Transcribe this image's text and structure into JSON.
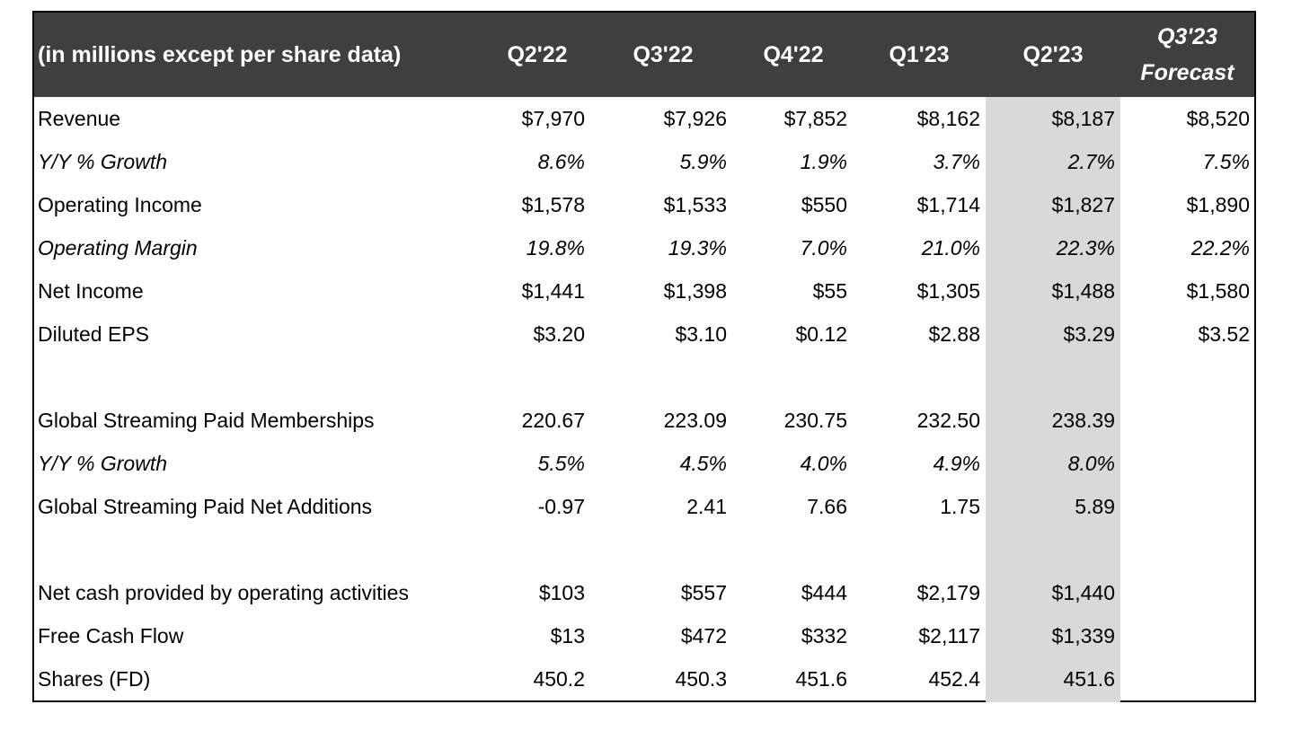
{
  "header": {
    "label": "(in millions except per share data)",
    "columns": [
      "Q2'22",
      "Q3'22",
      "Q4'22",
      "Q1'23",
      "Q2'23"
    ],
    "forecast_line1": "Q3'23",
    "forecast_line2": "Forecast"
  },
  "highlighted_column": "Q2'23",
  "rows": [
    {
      "label": "Revenue",
      "italic": false,
      "values": [
        "$7,970",
        "$7,926",
        "$7,852",
        "$8,162",
        "$8,187",
        "$8,520"
      ]
    },
    {
      "label": "Y/Y % Growth",
      "italic": true,
      "values": [
        "8.6%",
        "5.9%",
        "1.9%",
        "3.7%",
        "2.7%",
        "7.5%"
      ]
    },
    {
      "label": "Operating Income",
      "italic": false,
      "values": [
        "$1,578",
        "$1,533",
        "$550",
        "$1,714",
        "$1,827",
        "$1,890"
      ]
    },
    {
      "label": "Operating Margin",
      "italic": true,
      "values": [
        "19.8%",
        "19.3%",
        "7.0%",
        "21.0%",
        "22.3%",
        "22.2%"
      ]
    },
    {
      "label": "Net Income",
      "italic": false,
      "values": [
        "$1,441",
        "$1,398",
        "$55",
        "$1,305",
        "$1,488",
        "$1,580"
      ]
    },
    {
      "label": "Diluted EPS",
      "italic": false,
      "values": [
        "$3.20",
        "$3.10",
        "$0.12",
        "$2.88",
        "$3.29",
        "$3.52"
      ]
    },
    {
      "label": "Global Streaming Paid Memberships",
      "italic": false,
      "values": [
        "220.67",
        "223.09",
        "230.75",
        "232.50",
        "238.39",
        ""
      ]
    },
    {
      "label": "Y/Y % Growth",
      "italic": true,
      "values": [
        "5.5%",
        "4.5%",
        "4.0%",
        "4.9%",
        "8.0%",
        ""
      ]
    },
    {
      "label": "Global Streaming Paid Net Additions",
      "italic": false,
      "values": [
        "-0.97",
        "2.41",
        "7.66",
        "1.75",
        "5.89",
        ""
      ]
    },
    {
      "label": "Net cash provided by operating activities",
      "italic": false,
      "values": [
        "$103",
        "$557",
        "$444",
        "$2,179",
        "$1,440",
        ""
      ]
    },
    {
      "label": "Free Cash Flow",
      "italic": false,
      "values": [
        "$13",
        "$472",
        "$332",
        "$2,117",
        "$1,339",
        ""
      ]
    },
    {
      "label": "Shares (FD)",
      "italic": false,
      "values": [
        "450.2",
        "450.3",
        "451.6",
        "452.4",
        "451.6",
        ""
      ]
    }
  ],
  "colors": {
    "header_bg": "#3f3f3f",
    "header_text": "#ffffff",
    "highlight": "#d9d9d9",
    "border": "#000000"
  }
}
